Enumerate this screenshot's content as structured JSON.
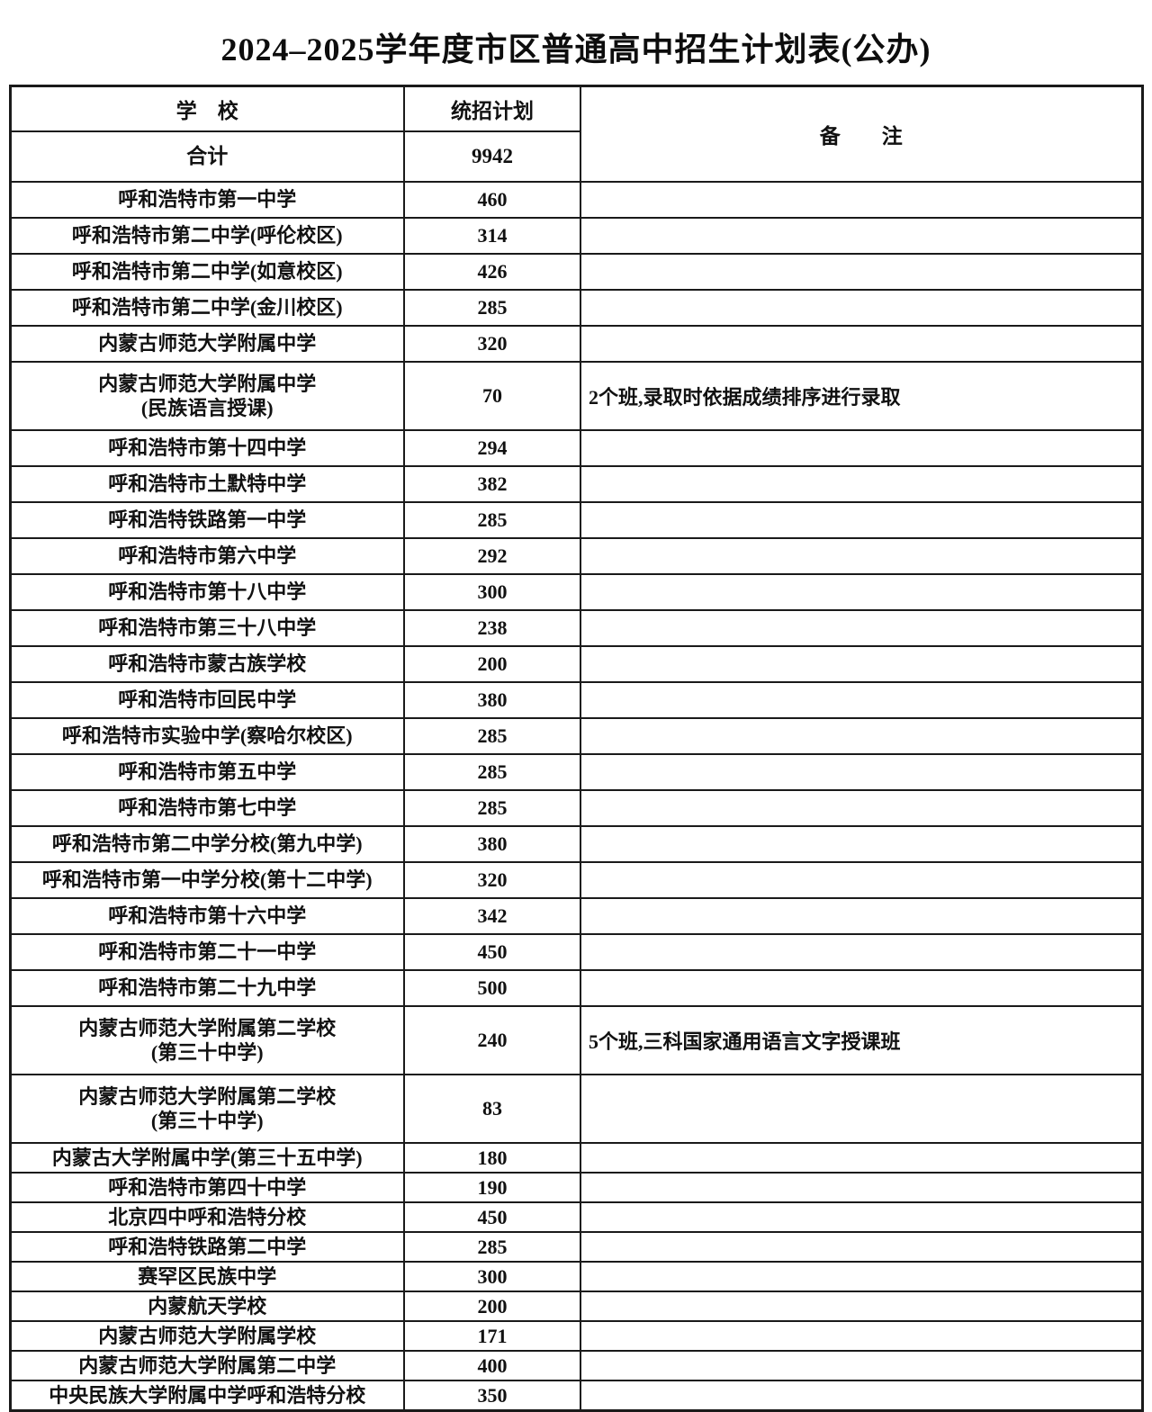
{
  "page": {
    "title": "2024–2025学年度市区普通高中招生计划表(公办)"
  },
  "table": {
    "headers": {
      "school": "学　校",
      "plan": "统招计划",
      "remark": "备　　注"
    },
    "total": {
      "school": "合计",
      "plan": "9942"
    },
    "rows": [
      {
        "school": "呼和浩特市第一中学",
        "plan": "460",
        "remark": ""
      },
      {
        "school": "呼和浩特市第二中学(呼伦校区)",
        "plan": "314",
        "remark": ""
      },
      {
        "school": "呼和浩特市第二中学(如意校区)",
        "plan": "426",
        "remark": ""
      },
      {
        "school": "呼和浩特市第二中学(金川校区)",
        "plan": "285",
        "remark": ""
      },
      {
        "school": "内蒙古师范大学附属中学",
        "plan": "320",
        "remark": ""
      },
      {
        "school": "内蒙古师范大学附属中学\n(民族语言授课)",
        "plan": "70",
        "remark": "2个班,录取时依据成绩排序进行录取"
      },
      {
        "school": "呼和浩特市第十四中学",
        "plan": "294",
        "remark": ""
      },
      {
        "school": "呼和浩特市土默特中学",
        "plan": "382",
        "remark": ""
      },
      {
        "school": "呼和浩特铁路第一中学",
        "plan": "285",
        "remark": ""
      },
      {
        "school": "呼和浩特市第六中学",
        "plan": "292",
        "remark": ""
      },
      {
        "school": "呼和浩特市第十八中学",
        "plan": "300",
        "remark": ""
      },
      {
        "school": "呼和浩特市第三十八中学",
        "plan": "238",
        "remark": ""
      },
      {
        "school": "呼和浩特市蒙古族学校",
        "plan": "200",
        "remark": ""
      },
      {
        "school": "呼和浩特市回民中学",
        "plan": "380",
        "remark": ""
      },
      {
        "school": "呼和浩特市实验中学(察哈尔校区)",
        "plan": "285",
        "remark": ""
      },
      {
        "school": "呼和浩特市第五中学",
        "plan": "285",
        "remark": ""
      },
      {
        "school": "呼和浩特市第七中学",
        "plan": "285",
        "remark": ""
      },
      {
        "school": "呼和浩特市第二中学分校(第九中学)",
        "plan": "380",
        "remark": ""
      },
      {
        "school": "呼和浩特市第一中学分校(第十二中学)",
        "plan": "320",
        "remark": ""
      },
      {
        "school": "呼和浩特市第十六中学",
        "plan": "342",
        "remark": ""
      },
      {
        "school": "呼和浩特市第二十一中学",
        "plan": "450",
        "remark": ""
      },
      {
        "school": "呼和浩特市第二十九中学",
        "plan": "500",
        "remark": ""
      },
      {
        "school": "内蒙古师范大学附属第二学校\n(第三十中学)",
        "plan": "240",
        "remark": "5个班,三科国家通用语言文字授课班"
      },
      {
        "school": "内蒙古师范大学附属第二学校\n(第三十中学)",
        "plan": "83",
        "remark": ""
      },
      {
        "school": "内蒙古大学附属中学(第三十五中学)",
        "plan": "180",
        "remark": ""
      },
      {
        "school": "呼和浩特市第四十中学",
        "plan": "190",
        "remark": ""
      },
      {
        "school": "北京四中呼和浩特分校",
        "plan": "450",
        "remark": ""
      },
      {
        "school": "呼和浩特铁路第二中学",
        "plan": "285",
        "remark": ""
      },
      {
        "school": "赛罕区民族中学",
        "plan": "300",
        "remark": ""
      },
      {
        "school": "内蒙航天学校",
        "plan": "200",
        "remark": ""
      },
      {
        "school": "内蒙古师范大学附属学校",
        "plan": "171",
        "remark": ""
      },
      {
        "school": "内蒙古师范大学附属第二中学",
        "plan": "400",
        "remark": ""
      },
      {
        "school": "中央民族大学附属中学呼和浩特分校",
        "plan": "350",
        "remark": ""
      }
    ]
  }
}
